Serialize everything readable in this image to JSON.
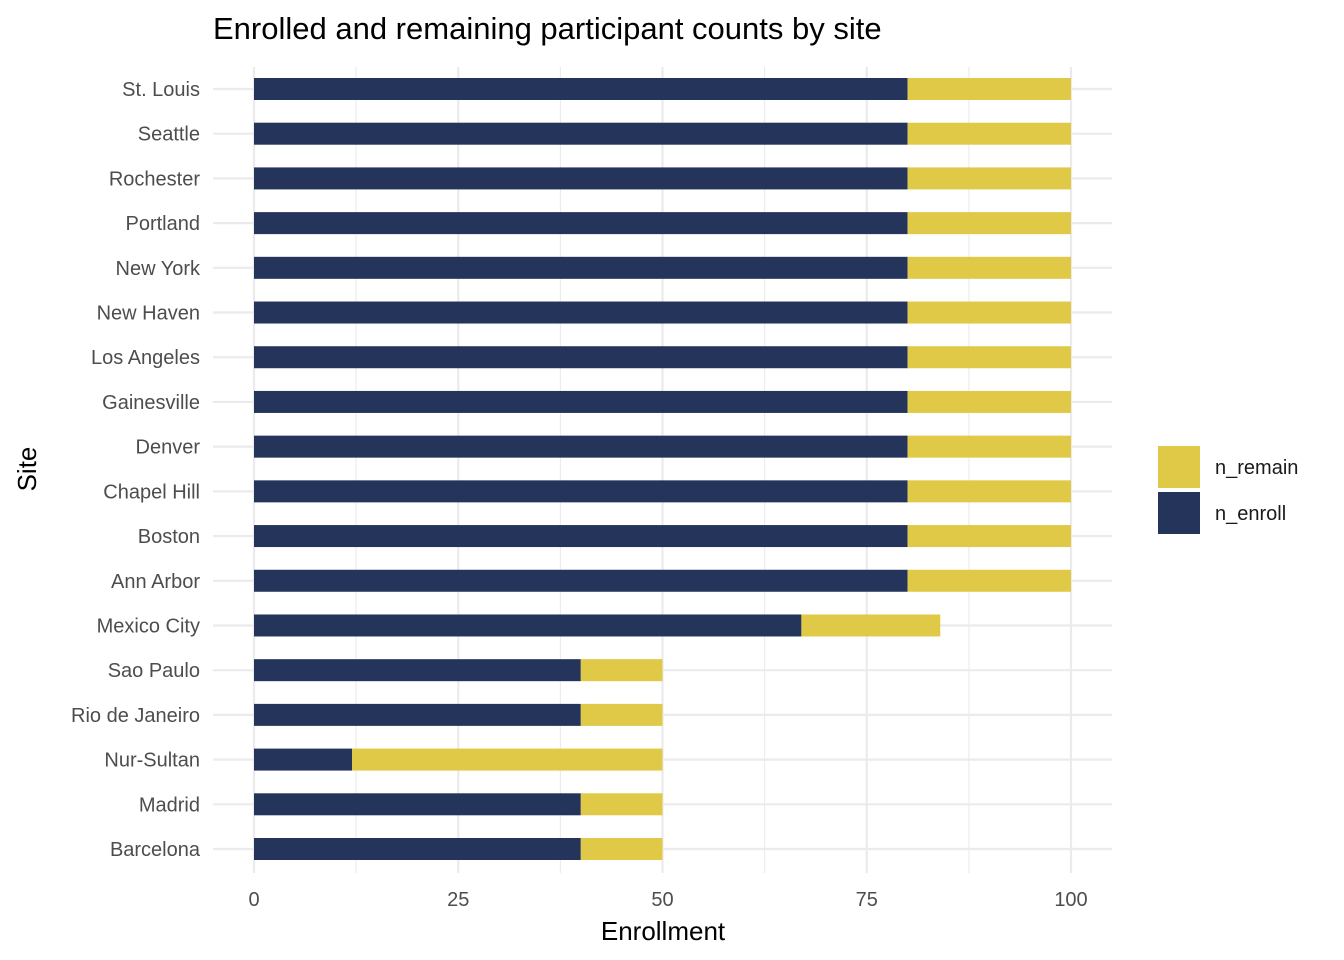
{
  "chart_data": {
    "type": "bar",
    "orientation": "horizontal",
    "stacked": true,
    "title": "Enrolled and remaining participant counts by site",
    "xlabel": "Enrollment",
    "ylabel": "Site",
    "xlim": [
      0,
      100
    ],
    "xticks": [
      "0",
      "25",
      "50",
      "75",
      "100"
    ],
    "grid": true,
    "legend_position": "right",
    "categories": [
      "Barcelona",
      "Madrid",
      "Nur-Sultan",
      "Rio de Janeiro",
      "Sao Paulo",
      "Mexico City",
      "Ann Arbor",
      "Boston",
      "Chapel Hill",
      "Denver",
      "Gainesville",
      "Los Angeles",
      "New Haven",
      "New York",
      "Portland",
      "Rochester",
      "Seattle",
      "St. Louis"
    ],
    "series": [
      {
        "name": "n_enroll",
        "color": "#25345a",
        "values": [
          40,
          40,
          12,
          40,
          40,
          67,
          80,
          80,
          80,
          80,
          80,
          80,
          80,
          80,
          80,
          80,
          80,
          80
        ]
      },
      {
        "name": "n_remain",
        "color": "#dfc946",
        "values": [
          10,
          10,
          38,
          10,
          10,
          17,
          20,
          20,
          20,
          20,
          20,
          20,
          20,
          20,
          20,
          20,
          20,
          20
        ]
      }
    ],
    "legend_order": [
      "n_remain",
      "n_enroll"
    ]
  }
}
